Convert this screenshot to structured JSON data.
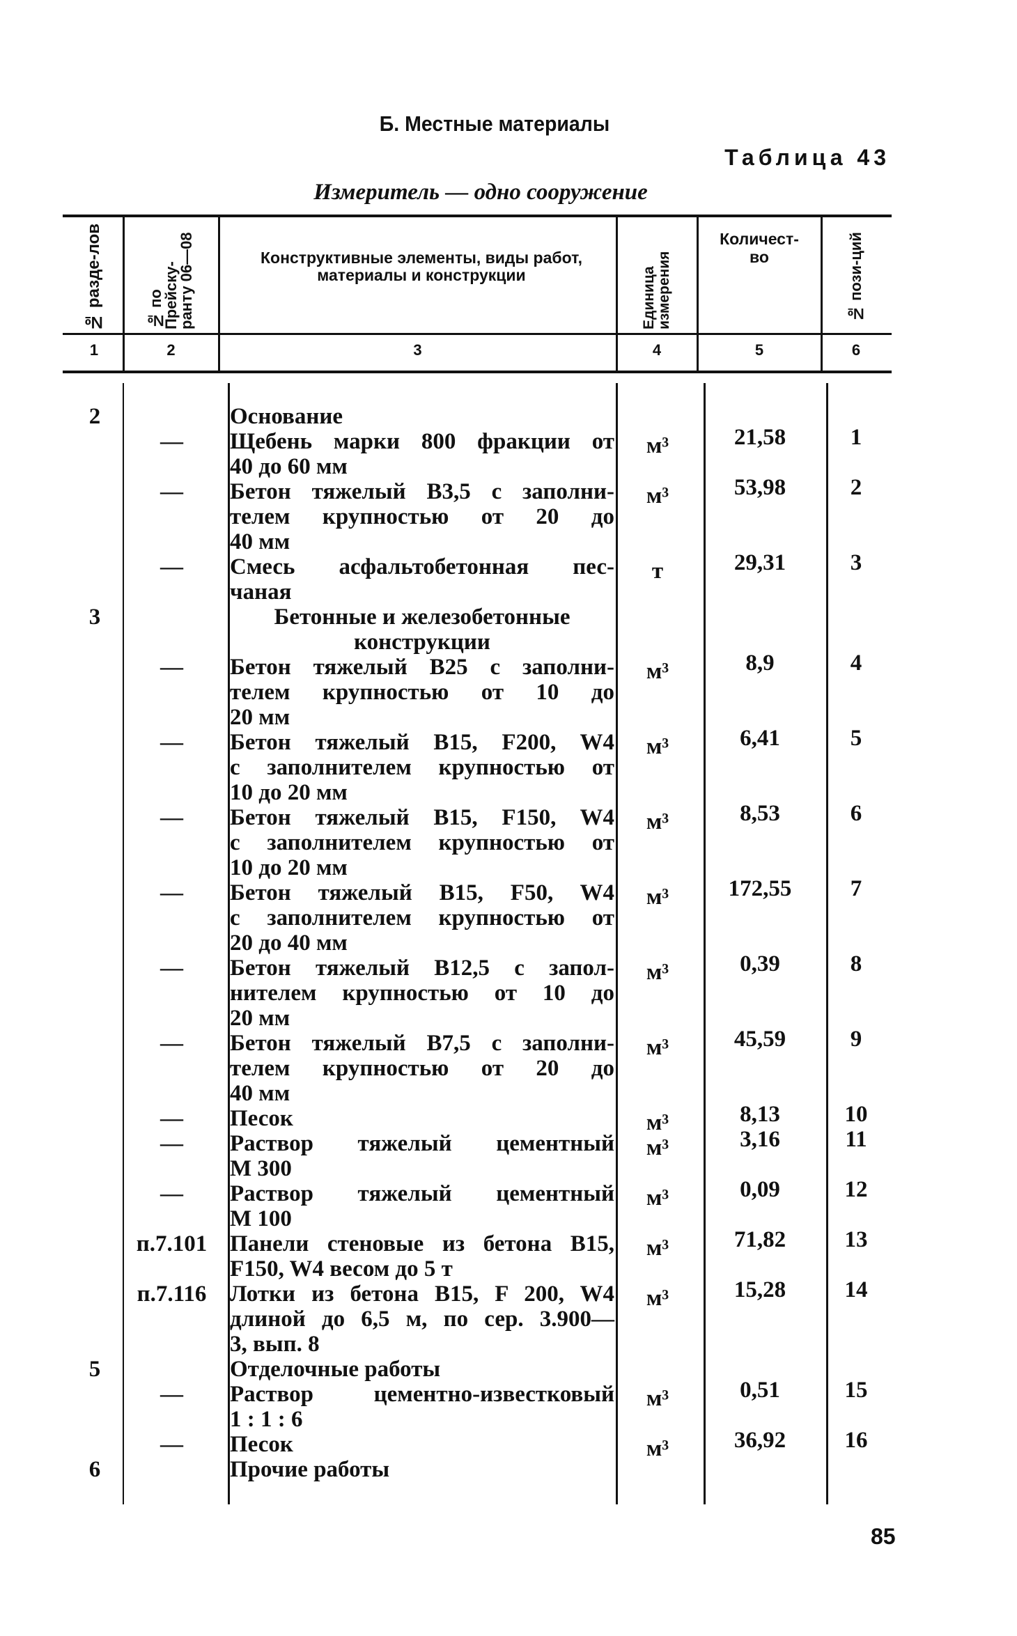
{
  "section_title": "Б. Местные материалы",
  "table_label": "Таблица 43",
  "measure": "Измеритель — одно сооружение",
  "headers": [
    "№ разде-лов",
    "№ по Прейску-ранту 06—08",
    "Конструктивные элементы, виды работ, материалы и конструкции",
    "Единица измерения",
    "Количест-во",
    "№ пози-ций"
  ],
  "column_numbers": [
    "1",
    "2",
    "3",
    "4",
    "5",
    "6"
  ],
  "rows": [
    {
      "section": "2",
      "ref": "",
      "lines": [
        "Основание"
      ],
      "unit": "",
      "qty": "",
      "pos": "",
      "heading": true
    },
    {
      "section": "",
      "ref": "—",
      "lines": [
        "Щебень марки 800 фракции от",
        "40 до 60 мм"
      ],
      "unit": "м³",
      "qty": "21,58",
      "pos": "1"
    },
    {
      "section": "",
      "ref": "—",
      "lines": [
        "Бетон тяжелый В3,5 с заполни-",
        "телем крупностью от 20 до",
        "40 мм"
      ],
      "unit": "м³",
      "qty": "53,98",
      "pos": "2"
    },
    {
      "section": "",
      "ref": "—",
      "lines": [
        "Смесь асфальтобетонная пес-",
        "чаная"
      ],
      "unit": "т",
      "qty": "29,31",
      "pos": "3"
    },
    {
      "section": "3",
      "ref": "",
      "lines": [
        "Бетонные и железобетонные",
        "конструкции"
      ],
      "unit": "",
      "qty": "",
      "pos": "",
      "heading": true,
      "center": true
    },
    {
      "section": "",
      "ref": "—",
      "lines": [
        "Бетон тяжелый В25 с заполни-",
        "телем крупностью от 10 до",
        "20 мм"
      ],
      "unit": "м³",
      "qty": "8,9",
      "pos": "4"
    },
    {
      "section": "",
      "ref": "—",
      "lines": [
        "Бетон тяжелый В15, F200, W4",
        "с заполнителем крупностью от",
        "10 до 20 мм"
      ],
      "unit": "м³",
      "qty": "6,41",
      "pos": "5"
    },
    {
      "section": "",
      "ref": "—",
      "lines": [
        "Бетон тяжелый В15, F150, W4",
        "с заполнителем крупностью от",
        "10 до 20 мм"
      ],
      "unit": "м³",
      "qty": "8,53",
      "pos": "6"
    },
    {
      "section": "",
      "ref": "—",
      "lines": [
        "Бетон тяжелый В15, F50, W4",
        "с заполнителем крупностью от",
        "20 до 40 мм"
      ],
      "unit": "м³",
      "qty": "172,55",
      "pos": "7"
    },
    {
      "section": "",
      "ref": "—",
      "lines": [
        "Бетон тяжелый В12,5 с запол-",
        "нителем крупностью от 10 до",
        "20 мм"
      ],
      "unit": "м³",
      "qty": "0,39",
      "pos": "8"
    },
    {
      "section": "",
      "ref": "—",
      "lines": [
        "Бетон тяжелый В7,5 с заполни-",
        "телем крупностью от 20 до",
        "40 мм"
      ],
      "unit": "м³",
      "qty": "45,59",
      "pos": "9"
    },
    {
      "section": "",
      "ref": "—",
      "lines": [
        "Песок"
      ],
      "unit": "м³",
      "qty": "8,13",
      "pos": "10"
    },
    {
      "section": "",
      "ref": "—",
      "lines": [
        "Раствор тяжелый цементный",
        "М 300"
      ],
      "unit": "м³",
      "qty": "3,16",
      "pos": "11"
    },
    {
      "section": "",
      "ref": "—",
      "lines": [
        "Раствор тяжелый цементный",
        "М 100"
      ],
      "unit": "м³",
      "qty": "0,09",
      "pos": "12"
    },
    {
      "section": "",
      "ref": "п.7.101",
      "lines": [
        "Панели стеновые из бетона В15,",
        "F150, W4 весом до 5 т"
      ],
      "unit": "м³",
      "qty": "71,82",
      "pos": "13"
    },
    {
      "section": "",
      "ref": "п.7.116",
      "lines": [
        "Лотки из бетона В15, F 200, W4",
        "длиной до 6,5 м, по сер. 3.900—",
        "3, вып. 8"
      ],
      "unit": "м³",
      "qty": "15,28",
      "pos": "14"
    },
    {
      "section": "5",
      "ref": "",
      "lines": [
        "Отделочные работы"
      ],
      "unit": "",
      "qty": "",
      "pos": "",
      "heading": true
    },
    {
      "section": "",
      "ref": "—",
      "lines": [
        "Раствор цементно-известковый",
        "1 : 1 : 6"
      ],
      "unit": "м³",
      "qty": "0,51",
      "pos": "15"
    },
    {
      "section": "",
      "ref": "—",
      "lines": [
        "Песок"
      ],
      "unit": "м³",
      "qty": "36,92",
      "pos": "16"
    },
    {
      "section": "6",
      "ref": "",
      "lines": [
        "Прочие работы"
      ],
      "unit": "",
      "qty": "",
      "pos": "",
      "heading": true
    }
  ],
  "page_number": "85"
}
